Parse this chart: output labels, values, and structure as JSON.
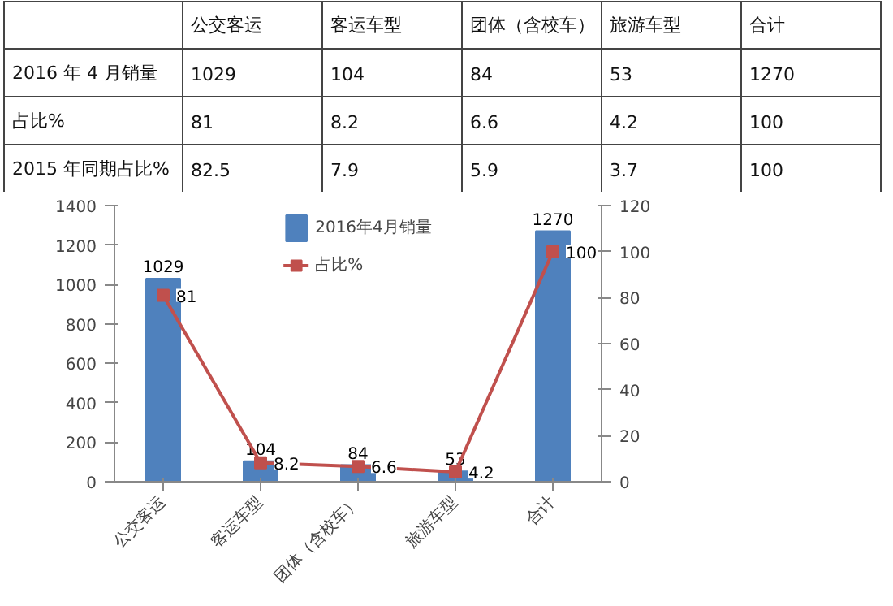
{
  "chart_data": [
    {
      "type": "other",
      "categories": [
        null,
        "公交客运",
        "客运车型",
        "团体（含校车）",
        "旅游车型",
        "合计"
      ],
      "y_categories": [
        "2016 年 4 月销量",
        "占比%",
        "2015 年同期占比%"
      ],
      "cell_labels": [
        [
          "1029",
          "104",
          "84",
          "53",
          "1270"
        ],
        [
          "81",
          "8.2",
          "6.6",
          "4.2",
          "100"
        ],
        [
          "82.5",
          "7.9",
          "5.9",
          "3.7",
          "100"
        ]
      ]
    },
    {
      "type": "bar",
      "categories": [
        "公交客运",
        "客运车型",
        "团体（含校车）",
        "旅游车型",
        "合计"
      ],
      "series": [
        {
          "name": "2016年4月销量",
          "color": "#4f81bd",
          "values": [
            1029,
            104,
            84,
            53,
            1270
          ]
        },
        {
          "name": "占比%",
          "type": "line",
          "axis": "y2",
          "color": "#c0504d",
          "values": [
            81,
            8.2,
            6.6,
            4.2,
            100
          ],
          "marker": "square"
        }
      ],
      "ylim": [
        0,
        1400
      ],
      "yticks": [
        0,
        200,
        400,
        600,
        800,
        1000,
        1200,
        1400
      ],
      "y2lim": [
        0,
        120
      ],
      "y2ticks": [
        0,
        20,
        40,
        60,
        80,
        100,
        120
      ],
      "data_labels": true,
      "grid": false,
      "legend": "top"
    }
  ]
}
